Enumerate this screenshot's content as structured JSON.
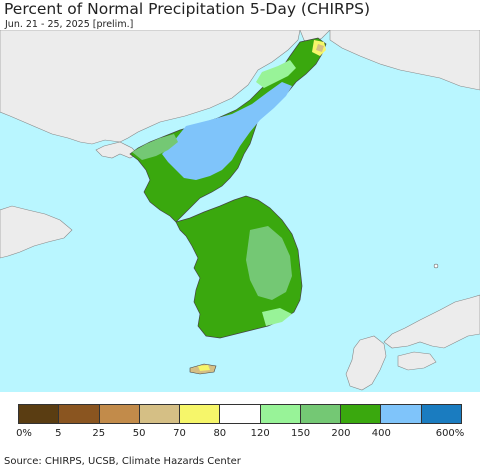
{
  "header": {
    "title": "Percent of Normal Precipitation 5-Day (CHIRPS)",
    "subtitle": "Jun. 21 - 25, 2025 [prelim.]"
  },
  "legend": {
    "colors": [
      "#5a3d12",
      "#8a5520",
      "#c28b4a",
      "#d5bf85",
      "#f6f66a",
      "#ffffff",
      "#98f398",
      "#74c874",
      "#3aa80e",
      "#7fc4fa",
      "#1a7cc0"
    ],
    "labels": [
      "0%",
      "5",
      "25",
      "50",
      "70",
      "80",
      "120",
      "150",
      "200",
      "400",
      "600%"
    ]
  },
  "footer": {
    "source": "Source: CHIRPS, UCSB, Climate Hazards Center"
  },
  "map_colors": {
    "sea": "#b9f6ff",
    "land_outside": "#ececec",
    "dark_green": "#3aa80e",
    "light_green": "#74c874",
    "pale_green": "#98f398",
    "light_blue": "#7fc4fa",
    "yellow": "#f6f66a",
    "tan": "#d5bf85"
  }
}
